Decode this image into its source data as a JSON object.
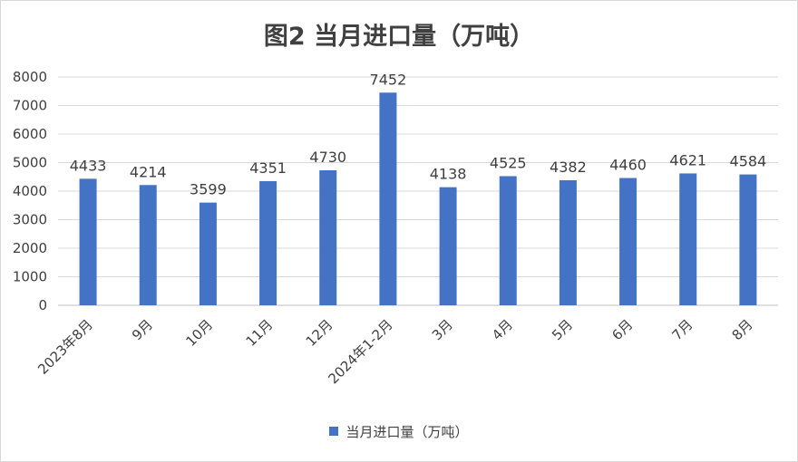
{
  "chart_data": {
    "type": "bar",
    "title": "图2  当月进口量（万吨）",
    "categories": [
      "2023年8月",
      "9月",
      "10月",
      "11月",
      "12月",
      "2024年1-2月",
      "3月",
      "4月",
      "5月",
      "6月",
      "7月",
      "8月"
    ],
    "series": [
      {
        "name": "当月进口量（万吨）",
        "values": [
          4433,
          4214,
          3599,
          4351,
          4730,
          7452,
          4138,
          4525,
          4382,
          4460,
          4621,
          4584
        ]
      }
    ],
    "xlabel": "",
    "ylabel": "",
    "ylim": [
      0,
      8000
    ],
    "yticks": [
      0,
      1000,
      2000,
      3000,
      4000,
      5000,
      6000,
      7000,
      8000
    ],
    "grid": true,
    "legend_position": "bottom",
    "data_labels": true,
    "colors": {
      "bar": "#4472c4",
      "grid": "#d9d9d9",
      "text": "#404040"
    }
  }
}
